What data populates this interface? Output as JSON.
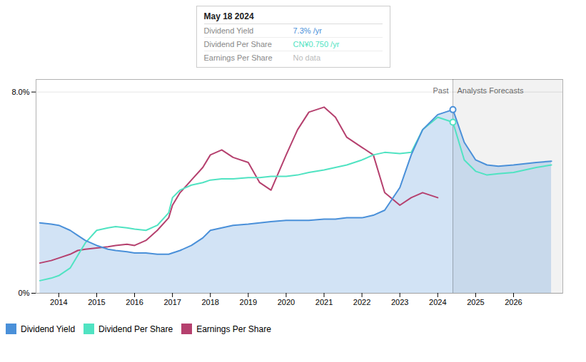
{
  "chart_data": {
    "type": "line",
    "x": [
      2013.5,
      2013.8,
      2014.0,
      2014.3,
      2014.5,
      2014.7,
      2015.0,
      2015.3,
      2015.5,
      2015.8,
      2016.0,
      2016.3,
      2016.6,
      2016.9,
      2017.0,
      2017.2,
      2017.5,
      2017.8,
      2018.0,
      2018.3,
      2018.6,
      2019.0,
      2019.3,
      2019.6,
      2020.0,
      2020.3,
      2020.6,
      2021.0,
      2021.3,
      2021.6,
      2022.0,
      2022.3,
      2022.6,
      2023.0,
      2023.3,
      2023.6,
      2024.0,
      2024.4,
      2024.7,
      2025.0,
      2025.3,
      2025.6,
      2026.0,
      2026.3,
      2026.6,
      2027.0
    ],
    "series": [
      {
        "name": "Dividend Yield",
        "color": "#4a90d9",
        "type": "area",
        "values": [
          2.8,
          2.75,
          2.7,
          2.5,
          2.3,
          2.1,
          1.9,
          1.75,
          1.7,
          1.65,
          1.6,
          1.6,
          1.55,
          1.55,
          1.6,
          1.7,
          1.9,
          2.2,
          2.5,
          2.6,
          2.7,
          2.75,
          2.8,
          2.85,
          2.9,
          2.9,
          2.9,
          2.95,
          2.95,
          3.0,
          3.0,
          3.1,
          3.3,
          4.2,
          5.5,
          6.5,
          7.1,
          7.3,
          6.0,
          5.3,
          5.1,
          5.05,
          5.1,
          5.15,
          5.2,
          5.25
        ]
      },
      {
        "name": "Dividend Per Share",
        "color": "#50e3c2",
        "type": "line",
        "values": [
          0.5,
          0.6,
          0.7,
          1.0,
          1.5,
          2.0,
          2.5,
          2.6,
          2.65,
          2.6,
          2.55,
          2.5,
          2.7,
          3.2,
          3.8,
          4.1,
          4.3,
          4.4,
          4.5,
          4.55,
          4.55,
          4.6,
          4.6,
          4.65,
          4.65,
          4.7,
          4.8,
          4.9,
          5.0,
          5.1,
          5.3,
          5.5,
          5.6,
          5.55,
          5.6,
          6.5,
          7.0,
          6.8,
          5.3,
          4.85,
          4.7,
          4.75,
          4.8,
          4.9,
          5.0,
          5.1
        ]
      },
      {
        "name": "Earnings Per Share",
        "color": "#b5406e",
        "type": "line",
        "values": [
          1.2,
          1.3,
          1.4,
          1.55,
          1.7,
          1.75,
          1.8,
          1.85,
          1.9,
          1.95,
          1.9,
          2.1,
          2.5,
          3.0,
          3.5,
          4.0,
          4.5,
          5.0,
          5.5,
          5.7,
          5.4,
          5.2,
          4.4,
          4.1,
          5.5,
          6.5,
          7.2,
          7.4,
          7.0,
          6.2,
          5.8,
          5.5,
          4.0,
          3.5,
          3.8,
          4.0,
          3.8,
          null,
          null,
          null,
          null,
          null,
          null,
          null,
          null,
          null
        ]
      }
    ],
    "xlim": [
      2013.4,
      2027.3
    ],
    "xticks": [
      2014,
      2015,
      2016,
      2017,
      2018,
      2019,
      2020,
      2021,
      2022,
      2023,
      2024,
      2025,
      2026
    ],
    "ylim": [
      0,
      8.5
    ],
    "yticks": [
      {
        "value": 0,
        "label": "0%"
      },
      {
        "value": 8.0,
        "label": "8.0%"
      }
    ],
    "grid": true,
    "legend": "bottom",
    "forecast_start": 2024.4,
    "annotations": [
      {
        "text": "Past",
        "x": 2024.4,
        "align": "right"
      },
      {
        "text": "Analysts Forecasts",
        "x": 2024.4,
        "align": "left"
      }
    ],
    "tooltip": {
      "title": "May 18 2024",
      "rows": [
        {
          "label": "Dividend Yield",
          "value": "7.3% /yr",
          "color": "#4a90d9"
        },
        {
          "label": "Dividend Per Share",
          "value": "CN¥0.750 /yr",
          "color": "#50e3c2"
        },
        {
          "label": "Earnings Per Share",
          "value": "No data",
          "color": "#bbbbbb"
        }
      ]
    }
  }
}
